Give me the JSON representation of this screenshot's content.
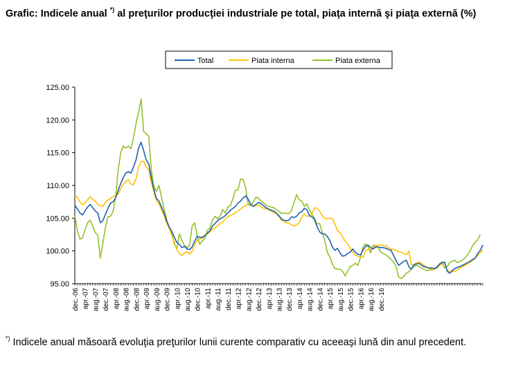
{
  "title": {
    "before": "Grafic: Indicele anual ",
    "sup": "*)",
    "after": " al preţurilor producţiei industriale pe total, piaţa internă şi piaţa externă (%)"
  },
  "footnote": {
    "sup": "*)",
    "text": " Indicele anual măsoară evoluţia preţurilor lunii curente comparativ cu aceeaşi lună din anul precedent."
  },
  "colors": {
    "Total": "#1f5fae",
    "Piata interna": "#ffc000",
    "Piata externa": "#92c02a"
  },
  "chart_data": {
    "type": "line",
    "ylim": [
      95,
      125
    ],
    "yticks": [
      "95.00",
      "100.00",
      "105.00",
      "110.00",
      "115.00",
      "120.00",
      "125.00"
    ],
    "grid": false,
    "legend": "top-center",
    "x_tick_labels": [
      "dec.-06",
      "apr.-07",
      "aug.-07",
      "dec.-07",
      "apr.-08",
      "aug.-08",
      "dec.-08",
      "apr.-09",
      "aug.-09",
      "dec.-09",
      "apr.-10",
      "aug.-10",
      "dec.-10",
      "apr.-11",
      "aug.-11",
      "dec.-11",
      "apr.-12",
      "aug.-12",
      "dec.-12",
      "apr.-13",
      "aug.-13",
      "dec.-13",
      "apr.-14",
      "aug.-14",
      "dec.-14",
      "apr.-15",
      "aug.-15",
      "dec.-15",
      "apr.-16",
      "aug.-16",
      "dec.-16"
    ],
    "x_first": "dec.-06",
    "x_last": "dec.-16",
    "series": [
      {
        "name": "Total",
        "values": [
          107.0,
          106.4,
          105.8,
          105.5,
          106.1,
          106.7,
          107.1,
          106.6,
          106.1,
          105.8,
          104.3,
          104.6,
          105.6,
          106.5,
          107.3,
          107.5,
          108.1,
          109.2,
          110.3,
          111.2,
          111.9,
          112.1,
          111.9,
          112.8,
          113.9,
          115.7,
          116.6,
          115.3,
          113.9,
          113.3,
          111.2,
          109.4,
          108.0,
          107.6,
          106.7,
          105.8,
          104.6,
          103.7,
          103.0,
          102.1,
          101.3,
          101.0,
          100.5,
          100.7,
          100.3,
          100.2,
          100.6,
          101.5,
          102.2,
          102.1,
          102.0,
          102.3,
          102.7,
          103.1,
          103.8,
          104.2,
          104.6,
          104.9,
          105.1,
          105.4,
          105.8,
          106.2,
          106.5,
          106.8,
          107.3,
          107.6,
          108.1,
          108.4,
          107.9,
          107.1,
          106.8,
          107.1,
          107.4,
          107.2,
          106.9,
          106.6,
          106.4,
          106.2,
          106.1,
          105.8,
          105.4,
          104.9,
          104.7,
          104.6,
          104.7,
          105.2,
          105.1,
          105.3,
          105.8,
          106.0,
          106.5,
          106.3,
          105.4,
          105.2,
          104.8,
          103.7,
          102.9,
          102.6,
          102.6,
          102.2,
          101.6,
          100.6,
          100.1,
          100.4,
          99.7,
          99.2,
          99.3,
          99.6,
          99.8,
          100.3,
          99.8,
          99.5,
          99.4,
          100.1,
          100.7,
          100.9,
          100.5,
          100.3,
          100.6,
          100.6,
          100.5,
          100.5,
          100.4,
          100.2,
          100.1,
          99.3,
          98.5,
          97.8,
          98.1,
          98.4,
          98.6,
          97.6,
          97.2,
          97.9,
          98.0,
          98.1,
          97.8,
          97.6,
          97.5,
          97.4,
          97.4,
          97.3,
          97.5,
          98.0,
          98.2,
          98.3,
          96.9,
          96.6,
          97.0,
          97.3,
          97.5,
          97.6,
          97.8,
          98.0,
          98.2,
          98.4,
          98.7,
          98.9,
          99.6,
          100.1,
          100.9
        ]
      },
      {
        "name": "Piata interna",
        "values": [
          108.5,
          108.2,
          107.5,
          107.0,
          107.3,
          107.8,
          108.3,
          107.9,
          107.6,
          107.1,
          106.9,
          106.8,
          107.4,
          107.8,
          108.0,
          108.3,
          108.5,
          108.7,
          109.5,
          110.2,
          110.6,
          110.9,
          110.2,
          110.1,
          111.0,
          112.8,
          113.6,
          113.7,
          112.8,
          112.4,
          110.4,
          109.0,
          107.6,
          107.2,
          106.3,
          105.4,
          104.2,
          103.5,
          102.4,
          101.4,
          100.2,
          99.6,
          99.3,
          99.7,
          99.9,
          99.5,
          99.9,
          101.0,
          101.6,
          101.8,
          102.2,
          102.4,
          102.6,
          102.9,
          103.3,
          103.5,
          103.8,
          104.2,
          104.4,
          104.9,
          105.2,
          105.4,
          105.6,
          105.8,
          106.1,
          106.4,
          106.7,
          106.9,
          107.2,
          107.1,
          106.8,
          106.9,
          107.0,
          106.8,
          106.5,
          106.4,
          106.3,
          106.1,
          105.8,
          105.7,
          105.3,
          104.7,
          104.5,
          104.3,
          104.2,
          104.0,
          103.8,
          104.0,
          104.3,
          105.2,
          105.6,
          105.3,
          105.3,
          105.6,
          106.6,
          106.5,
          106.1,
          105.4,
          105.0,
          104.9,
          105.0,
          104.9,
          104.1,
          103.1,
          102.8,
          102.1,
          101.5,
          101.1,
          100.4,
          99.8,
          99.4,
          99.2,
          99.1,
          99.0,
          100.0,
          100.3,
          100.2,
          100.5,
          100.8,
          100.9,
          100.9,
          100.8,
          100.8,
          100.5,
          100.3,
          100.2,
          100.1,
          99.9,
          99.8,
          99.6,
          99.4,
          100.0,
          97.8,
          97.9,
          98.2,
          98.3,
          98.1,
          97.8,
          97.5,
          97.3,
          97.2,
          97.2,
          97.4,
          97.8,
          98.0,
          98.3,
          97.1,
          96.8,
          96.8,
          96.9,
          97.1,
          97.4,
          97.6,
          97.8,
          98.0,
          98.3,
          98.5,
          98.9,
          99.3,
          99.7,
          100.2
        ]
      },
      {
        "name": "Piata externa",
        "values": [
          105.4,
          103.1,
          101.8,
          102.0,
          103.2,
          104.3,
          104.7,
          103.8,
          102.8,
          102.4,
          98.9,
          101.2,
          103.6,
          105.2,
          105.3,
          106.0,
          108.3,
          112.3,
          115.0,
          116.0,
          115.7,
          116.0,
          115.6,
          117.3,
          119.4,
          121.2,
          123.2,
          118.2,
          117.9,
          117.5,
          112.4,
          109.8,
          109.1,
          110.0,
          108.2,
          106.5,
          104.8,
          103.4,
          102.7,
          101.1,
          100.3,
          102.6,
          101.6,
          100.8,
          100.5,
          100.8,
          103.8,
          104.3,
          102.3,
          101.0,
          101.5,
          101.9,
          103.2,
          103.5,
          104.7,
          105.3,
          104.9,
          105.3,
          106.3,
          105.8,
          106.7,
          106.9,
          108.0,
          109.3,
          109.3,
          111.0,
          110.9,
          109.6,
          107.1,
          106.9,
          107.5,
          108.2,
          108.1,
          107.6,
          107.3,
          107.0,
          106.8,
          106.7,
          106.6,
          106.3,
          106.1,
          105.7,
          105.8,
          105.7,
          105.7,
          106.2,
          107.4,
          108.6,
          107.8,
          107.6,
          106.8,
          107.2,
          106.3,
          105.6,
          105.0,
          104.1,
          104.2,
          102.9,
          101.6,
          99.8,
          99.1,
          98.0,
          97.3,
          97.2,
          97.2,
          96.9,
          96.2,
          96.9,
          97.6,
          97.8,
          98.1,
          97.8,
          99.0,
          100.6,
          101.1,
          100.7,
          99.7,
          100.9,
          100.8,
          100.5,
          99.8,
          99.6,
          99.4,
          99.1,
          98.7,
          98.3,
          97.6,
          96.0,
          95.8,
          96.1,
          96.6,
          96.8,
          97.3,
          97.6,
          97.8,
          97.6,
          97.4,
          97.2,
          97.0,
          97.1,
          97.1,
          97.2,
          97.6,
          98.0,
          98.3,
          97.4,
          97.6,
          98.2,
          98.4,
          98.6,
          98.2,
          98.4,
          98.6,
          98.9,
          99.4,
          100.0,
          100.8,
          101.3,
          101.7,
          102.5
        ]
      }
    ]
  }
}
